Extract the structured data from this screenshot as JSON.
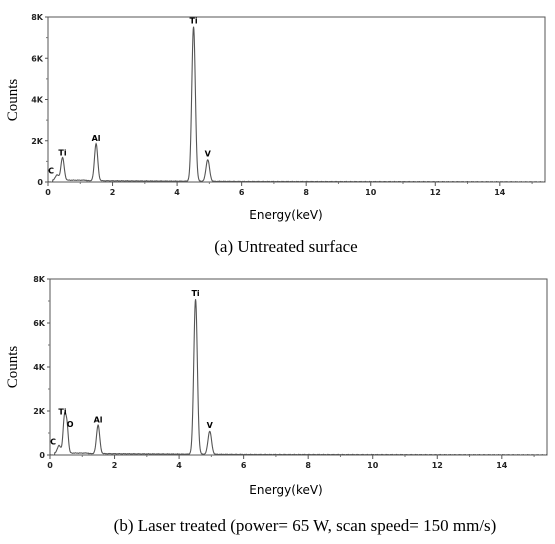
{
  "chart_data": [
    {
      "type": "line",
      "caption": "(a) Untreated surface",
      "xlabel": "Energy(keV)",
      "ylabel": "Counts",
      "xlim": [
        0,
        15.4
      ],
      "ylim": [
        0,
        8000
      ],
      "x_ticks": [
        "0",
        "2",
        "4",
        "6",
        "8",
        "10",
        "12",
        "14"
      ],
      "y_ticks": [
        "0",
        "2K",
        "4K",
        "6K",
        "8K"
      ],
      "grid": false,
      "line_color": "#555555",
      "background": 40,
      "peaks": [
        {
          "label": "C",
          "energy": 0.28,
          "counts": 260,
          "width": 0.05
        },
        {
          "label": "Ti",
          "energy": 0.45,
          "counts": 1100,
          "width": 0.05
        },
        {
          "label": "Al",
          "energy": 1.49,
          "counts": 1800,
          "width": 0.05
        },
        {
          "label": "Ti",
          "energy": 4.51,
          "counts": 7500,
          "width": 0.055
        },
        {
          "label": "V",
          "energy": 4.95,
          "counts": 1050,
          "width": 0.055
        }
      ]
    },
    {
      "type": "line",
      "caption": "(b) Laser treated (power= 65 W, scan speed= 150 mm/s)",
      "xlabel": "Energy(keV)",
      "ylabel": "Counts",
      "xlim": [
        0,
        15.4
      ],
      "ylim": [
        0,
        8000
      ],
      "x_ticks": [
        "0",
        "2",
        "4",
        "6",
        "8",
        "10",
        "12",
        "14"
      ],
      "y_ticks": [
        "0",
        "2K",
        "4K",
        "6K",
        "8K"
      ],
      "grid": false,
      "line_color": "#555555",
      "background": 40,
      "peaks": [
        {
          "label": "C",
          "energy": 0.28,
          "counts": 350,
          "width": 0.05
        },
        {
          "label": "Ti",
          "energy": 0.45,
          "counts": 1650,
          "width": 0.045
        },
        {
          "label": "O",
          "energy": 0.53,
          "counts": 1100,
          "width": 0.04
        },
        {
          "label": "Al",
          "energy": 1.49,
          "counts": 1300,
          "width": 0.05
        },
        {
          "label": "Ti",
          "energy": 4.51,
          "counts": 7050,
          "width": 0.055
        },
        {
          "label": "V",
          "energy": 4.95,
          "counts": 1050,
          "width": 0.055
        }
      ]
    }
  ]
}
